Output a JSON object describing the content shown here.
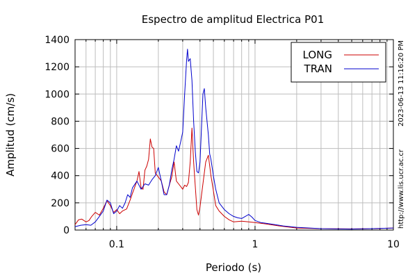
{
  "chart_data": {
    "type": "line",
    "title": "Espectro de amplitud Electrica P01",
    "xlabel": "Periodo (s)",
    "ylabel": "Amplitud (cm/s)",
    "x_scale": "log",
    "xlim": [
      0.05,
      10
    ],
    "ylim": [
      0,
      1400
    ],
    "x_ticks": [
      0.1,
      1,
      10
    ],
    "x_tick_labels": [
      "0.1",
      "1",
      "10"
    ],
    "y_ticks": [
      0,
      200,
      400,
      600,
      800,
      1000,
      1200,
      1400
    ],
    "y_tick_labels": [
      "0",
      "200",
      "400",
      "600",
      "800",
      "1000",
      "1200",
      "1400"
    ],
    "grid": true,
    "legend_position": "top-right",
    "series": [
      {
        "name": "LONG",
        "color": "#cc0000",
        "points": [
          [
            0.05,
            40
          ],
          [
            0.053,
            75
          ],
          [
            0.056,
            80
          ],
          [
            0.06,
            60
          ],
          [
            0.063,
            70
          ],
          [
            0.066,
            100
          ],
          [
            0.07,
            130
          ],
          [
            0.075,
            110
          ],
          [
            0.08,
            160
          ],
          [
            0.085,
            215
          ],
          [
            0.09,
            180
          ],
          [
            0.095,
            130
          ],
          [
            0.1,
            150
          ],
          [
            0.105,
            120
          ],
          [
            0.11,
            140
          ],
          [
            0.118,
            155
          ],
          [
            0.125,
            220
          ],
          [
            0.13,
            270
          ],
          [
            0.14,
            360
          ],
          [
            0.145,
            430
          ],
          [
            0.15,
            310
          ],
          [
            0.155,
            300
          ],
          [
            0.16,
            440
          ],
          [
            0.165,
            470
          ],
          [
            0.17,
            520
          ],
          [
            0.175,
            670
          ],
          [
            0.18,
            610
          ],
          [
            0.185,
            600
          ],
          [
            0.19,
            420
          ],
          [
            0.2,
            390
          ],
          [
            0.21,
            360
          ],
          [
            0.22,
            280
          ],
          [
            0.23,
            260
          ],
          [
            0.24,
            330
          ],
          [
            0.25,
            390
          ],
          [
            0.26,
            500
          ],
          [
            0.27,
            360
          ],
          [
            0.28,
            340
          ],
          [
            0.29,
            320
          ],
          [
            0.3,
            300
          ],
          [
            0.31,
            330
          ],
          [
            0.32,
            320
          ],
          [
            0.33,
            350
          ],
          [
            0.34,
            500
          ],
          [
            0.35,
            750
          ],
          [
            0.36,
            500
          ],
          [
            0.37,
            320
          ],
          [
            0.38,
            150
          ],
          [
            0.39,
            110
          ],
          [
            0.4,
            170
          ],
          [
            0.42,
            340
          ],
          [
            0.44,
            500
          ],
          [
            0.46,
            550
          ],
          [
            0.48,
            400
          ],
          [
            0.5,
            290
          ],
          [
            0.52,
            180
          ],
          [
            0.55,
            140
          ],
          [
            0.6,
            100
          ],
          [
            0.65,
            75
          ],
          [
            0.7,
            60
          ],
          [
            0.8,
            65
          ],
          [
            0.9,
            60
          ],
          [
            1.0,
            55
          ],
          [
            1.2,
            45
          ],
          [
            1.5,
            30
          ],
          [
            2,
            15
          ],
          [
            3,
            10
          ],
          [
            5,
            8
          ],
          [
            7,
            10
          ],
          [
            10,
            15
          ]
        ]
      },
      {
        "name": "TRAN",
        "color": "#0000cc",
        "points": [
          [
            0.05,
            25
          ],
          [
            0.055,
            35
          ],
          [
            0.06,
            40
          ],
          [
            0.065,
            35
          ],
          [
            0.07,
            60
          ],
          [
            0.075,
            100
          ],
          [
            0.08,
            140
          ],
          [
            0.085,
            220
          ],
          [
            0.09,
            200
          ],
          [
            0.095,
            120
          ],
          [
            0.1,
            140
          ],
          [
            0.105,
            180
          ],
          [
            0.11,
            160
          ],
          [
            0.115,
            200
          ],
          [
            0.12,
            260
          ],
          [
            0.125,
            240
          ],
          [
            0.13,
            310
          ],
          [
            0.14,
            360
          ],
          [
            0.15,
            300
          ],
          [
            0.16,
            340
          ],
          [
            0.17,
            330
          ],
          [
            0.18,
            370
          ],
          [
            0.19,
            400
          ],
          [
            0.2,
            460
          ],
          [
            0.21,
            360
          ],
          [
            0.22,
            260
          ],
          [
            0.23,
            260
          ],
          [
            0.24,
            330
          ],
          [
            0.25,
            440
          ],
          [
            0.26,
            520
          ],
          [
            0.27,
            620
          ],
          [
            0.28,
            580
          ],
          [
            0.29,
            650
          ],
          [
            0.3,
            720
          ],
          [
            0.31,
            1000
          ],
          [
            0.32,
            1250
          ],
          [
            0.325,
            1330
          ],
          [
            0.33,
            1240
          ],
          [
            0.34,
            1260
          ],
          [
            0.35,
            1100
          ],
          [
            0.36,
            800
          ],
          [
            0.37,
            580
          ],
          [
            0.38,
            430
          ],
          [
            0.39,
            420
          ],
          [
            0.4,
            500
          ],
          [
            0.42,
            1000
          ],
          [
            0.43,
            1040
          ],
          [
            0.44,
            900
          ],
          [
            0.46,
            700
          ],
          [
            0.47,
            560
          ],
          [
            0.48,
            520
          ],
          [
            0.5,
            400
          ],
          [
            0.52,
            300
          ],
          [
            0.55,
            200
          ],
          [
            0.6,
            150
          ],
          [
            0.65,
            120
          ],
          [
            0.7,
            100
          ],
          [
            0.75,
            90
          ],
          [
            0.8,
            85
          ],
          [
            0.85,
            100
          ],
          [
            0.9,
            115
          ],
          [
            0.95,
            95
          ],
          [
            1.0,
            70
          ],
          [
            1.1,
            55
          ],
          [
            1.2,
            50
          ],
          [
            1.4,
            40
          ],
          [
            1.6,
            30
          ],
          [
            2,
            20
          ],
          [
            3,
            10
          ],
          [
            4,
            8
          ],
          [
            5,
            7
          ],
          [
            7,
            10
          ],
          [
            10,
            15
          ]
        ]
      }
    ]
  },
  "side_notes": {
    "timestamp": "2023-06-13 11:16:20 PM",
    "url": "http://www.lis.ucr.ac.cr"
  }
}
